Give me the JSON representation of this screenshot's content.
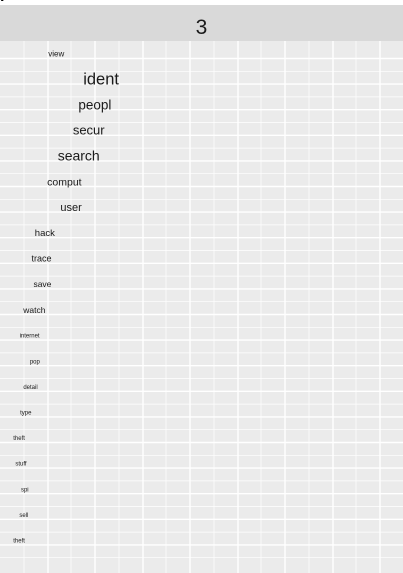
{
  "header_partial_text": "ı",
  "facet": {
    "label": "3"
  },
  "colors": {
    "strip": "#d9d9d9",
    "panel": "#ebebeb",
    "grid": "#ffffff",
    "text": "#1a1a1a"
  },
  "chart_data": {
    "type": "table",
    "grid": true,
    "facet_label": "3",
    "words": [
      {
        "word": "view",
        "x": 1.18,
        "size": 8.0
      },
      {
        "word": "ident",
        "x": 2.12,
        "size": 16.5
      },
      {
        "word": "peopl",
        "x": 1.99,
        "size": 13.5
      },
      {
        "word": "secur",
        "x": 1.86,
        "size": 13.0
      },
      {
        "word": "search",
        "x": 1.65,
        "size": 14.0
      },
      {
        "word": "comput",
        "x": 1.35,
        "size": 10.5
      },
      {
        "word": "user",
        "x": 1.49,
        "size": 11.0
      },
      {
        "word": "hack",
        "x": 0.94,
        "size": 9.5
      },
      {
        "word": "trace",
        "x": 0.87,
        "size": 9.0
      },
      {
        "word": "save",
        "x": 0.89,
        "size": 8.5
      },
      {
        "word": "watch",
        "x": 0.72,
        "size": 8.5
      },
      {
        "word": "internet",
        "x": 0.62,
        "size": 6.0
      },
      {
        "word": "pop",
        "x": 0.73,
        "size": 6.0
      },
      {
        "word": "detail",
        "x": 0.64,
        "size": 6.0
      },
      {
        "word": "type",
        "x": 0.54,
        "size": 6.0
      },
      {
        "word": "theft",
        "x": 0.4,
        "size": 6.0
      },
      {
        "word": "stuff",
        "x": 0.44,
        "size": 6.0
      },
      {
        "word": "spi",
        "x": 0.52,
        "size": 6.0
      },
      {
        "word": "sell",
        "x": 0.5,
        "size": 6.0
      },
      {
        "word": "theft",
        "x": 0.4,
        "size": 6.0
      }
    ]
  }
}
